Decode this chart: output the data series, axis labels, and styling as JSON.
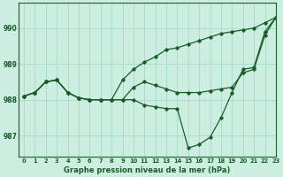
{
  "title": "Graphe pression niveau de la mer (hPa)",
  "background_color": "#cceee0",
  "grid_color": "#aaddcc",
  "line_color": "#1a5c2a",
  "xlim": [
    -0.5,
    23
  ],
  "ylim": [
    986.4,
    990.7
  ],
  "yticks": [
    987,
    988,
    989,
    990
  ],
  "xticks": [
    0,
    1,
    2,
    3,
    4,
    5,
    6,
    7,
    8,
    9,
    10,
    11,
    12,
    13,
    14,
    15,
    16,
    17,
    18,
    19,
    20,
    21,
    22,
    23
  ],
  "series1": [
    988.1,
    988.2,
    988.5,
    988.55,
    988.2,
    988.05,
    988.0,
    988.0,
    988.0,
    988.0,
    988.0,
    987.85,
    987.8,
    987.75,
    987.75,
    986.65,
    986.75,
    986.95,
    987.5,
    988.2,
    988.85,
    988.9,
    989.9,
    990.3
  ],
  "series2": [
    988.1,
    988.2,
    988.5,
    988.55,
    988.2,
    988.05,
    988.0,
    988.0,
    988.0,
    988.0,
    988.35,
    988.5,
    988.4,
    988.3,
    988.2,
    988.2,
    988.2,
    988.25,
    988.3,
    988.35,
    988.75,
    988.85,
    989.8,
    990.3
  ],
  "series3": [
    988.1,
    988.2,
    988.5,
    988.55,
    988.2,
    988.05,
    988.0,
    988.0,
    988.0,
    988.55,
    988.85,
    989.05,
    989.2,
    989.4,
    989.45,
    989.55,
    989.65,
    989.75,
    989.85,
    989.9,
    989.95,
    990.0,
    990.15,
    990.3
  ]
}
